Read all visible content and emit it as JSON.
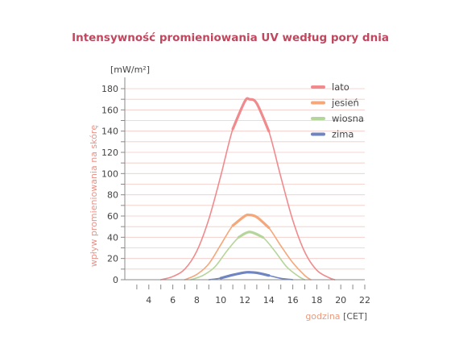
{
  "chart_data": {
    "type": "area",
    "title": "Intensywność promieniowania UV według pory dnia",
    "unit_label": "[mW/m²]",
    "ylabel": "wpływ promieniowania na skórę",
    "xlabel_main": "godzina",
    "xlabel_unit": "[CET]",
    "xlim": [
      2,
      22
    ],
    "ylim": [
      0,
      180
    ],
    "x_ticks": [
      4,
      6,
      8,
      10,
      12,
      14,
      16,
      18,
      20,
      22
    ],
    "y_ticks": [
      0,
      20,
      40,
      60,
      80,
      100,
      120,
      140,
      160,
      180
    ],
    "grid": true,
    "legend_position": "top-right",
    "colors": {
      "title": "#c0485e",
      "ylabel": "#e8948a",
      "xlabel": "#e89a7e",
      "grid": "#f0c9c5",
      "axis": "#888888"
    },
    "series": [
      {
        "name": "lato",
        "color": "#f08a8c",
        "peak_x": 12.4,
        "peak_y": 170,
        "x_start": 5,
        "x_end": 19.5,
        "points": [
          [
            5,
            0
          ],
          [
            6,
            3
          ],
          [
            7,
            10
          ],
          [
            8,
            27
          ],
          [
            9,
            57
          ],
          [
            10,
            98
          ],
          [
            11,
            142
          ],
          [
            12,
            168
          ],
          [
            12.4,
            170
          ],
          [
            13,
            166
          ],
          [
            14,
            140
          ],
          [
            15,
            97
          ],
          [
            16,
            56
          ],
          [
            17,
            26
          ],
          [
            18,
            9
          ],
          [
            19,
            2
          ],
          [
            19.5,
            0
          ]
        ]
      },
      {
        "name": "jesień",
        "color": "#f5a77a",
        "peak_x": 12.4,
        "peak_y": 61,
        "x_start": 7,
        "x_end": 17.5,
        "points": [
          [
            7,
            0
          ],
          [
            8,
            5
          ],
          [
            9,
            15
          ],
          [
            10,
            33
          ],
          [
            11,
            51
          ],
          [
            12,
            60
          ],
          [
            12.4,
            61
          ],
          [
            13,
            59
          ],
          [
            14,
            49
          ],
          [
            15,
            32
          ],
          [
            16,
            16
          ],
          [
            17,
            4
          ],
          [
            17.5,
            0
          ]
        ]
      },
      {
        "name": "wiosna",
        "color": "#b5d69a",
        "peak_x": 12.4,
        "peak_y": 45,
        "x_start": 7.5,
        "x_end": 17,
        "points": [
          [
            7.5,
            0
          ],
          [
            8.5,
            4
          ],
          [
            9.5,
            12
          ],
          [
            10.5,
            27
          ],
          [
            11.5,
            40
          ],
          [
            12.4,
            45
          ],
          [
            13.5,
            40
          ],
          [
            14.5,
            27
          ],
          [
            15.5,
            12
          ],
          [
            16.5,
            3
          ],
          [
            17,
            0
          ]
        ]
      },
      {
        "name": "zima",
        "color": "#6f84c2",
        "peak_x": 12.4,
        "peak_y": 7,
        "x_start": 9,
        "x_end": 16,
        "points": [
          [
            9,
            0
          ],
          [
            10,
            1.5
          ],
          [
            11,
            4.5
          ],
          [
            12,
            6.8
          ],
          [
            12.4,
            7
          ],
          [
            13,
            6.5
          ],
          [
            14,
            4
          ],
          [
            15,
            1.3
          ],
          [
            16,
            0
          ]
        ]
      }
    ]
  }
}
